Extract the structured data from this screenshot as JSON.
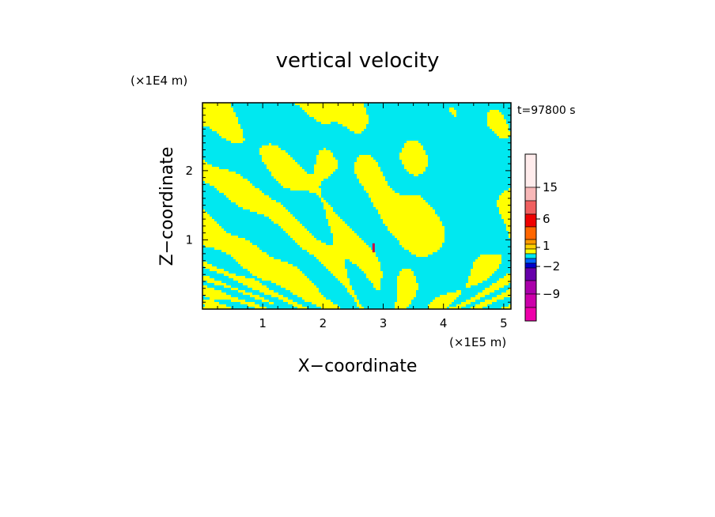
{
  "chart_data": {
    "type": "heatmap",
    "title": "vertical velocity",
    "xlabel": "X−coordinate",
    "ylabel": "Z−coordinate",
    "x_unit": "(×1E5 m)",
    "y_unit": "(×1E4 m)",
    "time_label": "t=97800 s",
    "xlim": [
      0,
      5.12
    ],
    "ylim": [
      0,
      2.98
    ],
    "x_ticks": [
      1,
      2,
      3,
      4,
      5
    ],
    "y_ticks": [
      1,
      2
    ],
    "x_tick_labels": [
      "1",
      "2",
      "3",
      "4",
      "5"
    ],
    "y_tick_labels": [
      "1",
      "2"
    ],
    "field_colors": {
      "positive": "#ffff00",
      "negative": "#00e8f0",
      "peak": "#cc0044"
    },
    "colorbar": {
      "colors": [
        "#ffecec",
        "#f8b8b8",
        "#f06060",
        "#ee0000",
        "#ff6600",
        "#ff9900",
        "#ffd000",
        "#ffff00",
        "#00e8f0",
        "#0066ff",
        "#0000cc",
        "#6600aa",
        "#aa00aa",
        "#cc00aa",
        "#ee00aa"
      ],
      "tick_labels": [
        "15",
        "6",
        "1",
        "−2",
        "−9"
      ]
    }
  }
}
